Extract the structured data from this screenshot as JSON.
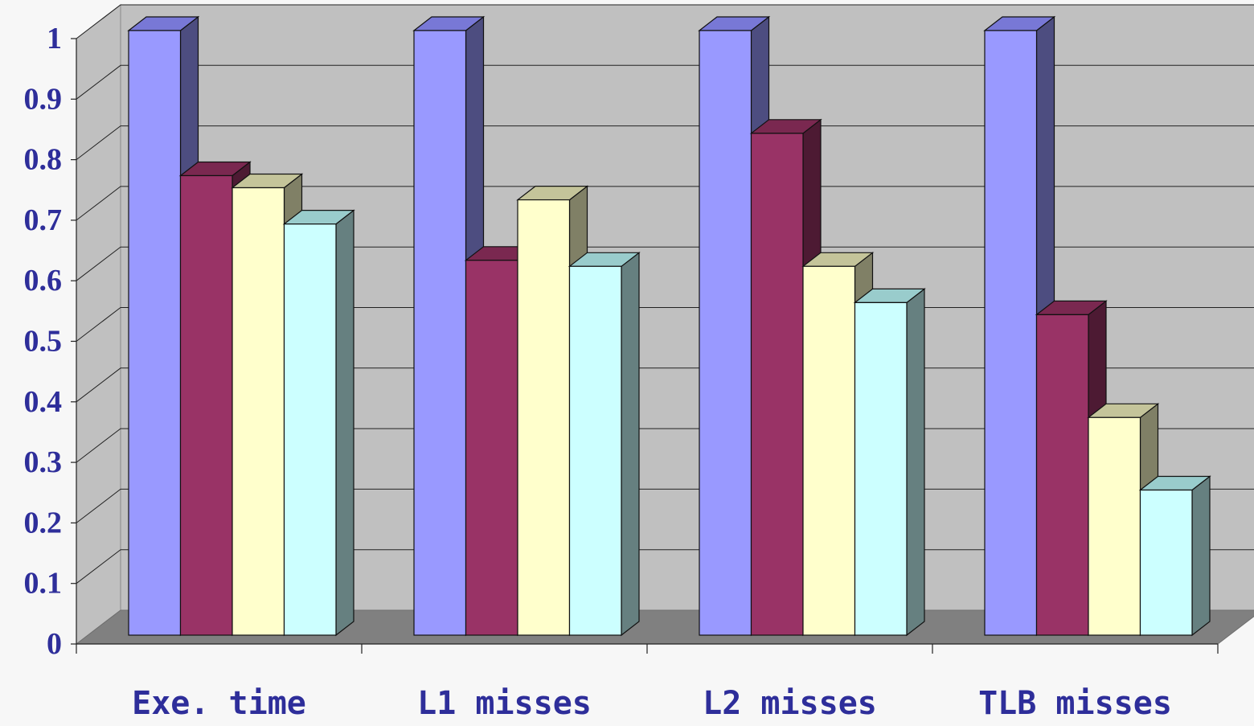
{
  "chart_data": {
    "type": "bar",
    "title": "",
    "xlabel": "",
    "ylabel": "",
    "categories": [
      "Exe. time",
      "L1 misses",
      "L2 misses",
      "TLB misses"
    ],
    "series": [
      {
        "values": [
          1.0,
          1.0,
          1.0,
          1.0
        ]
      },
      {
        "values": [
          0.76,
          0.62,
          0.83,
          0.53
        ]
      },
      {
        "values": [
          0.74,
          0.72,
          0.61,
          0.36
        ]
      },
      {
        "values": [
          0.68,
          0.61,
          0.55,
          0.24
        ]
      }
    ],
    "ylim": [
      0,
      1
    ],
    "yticks": [
      "0",
      "0.1",
      "0.2",
      "0.3",
      "0.4",
      "0.5",
      "0.6",
      "0.7",
      "0.8",
      "0.9",
      "1"
    ],
    "grid": true,
    "legend": "none",
    "three_d": true
  },
  "colors": {
    "series": [
      {
        "front": "#9999ff",
        "top": "#7878d6",
        "side": "#4d4d80"
      },
      {
        "front": "#993366",
        "top": "#7a2850",
        "side": "#4d1a33"
      },
      {
        "front": "#ffffcc",
        "top": "#c4c49a",
        "side": "#808066"
      },
      {
        "front": "#ccffff",
        "top": "#99cccc",
        "side": "#668080"
      }
    ],
    "wall": "#c0c0c0",
    "floor": "#808080",
    "tick_text": "#2e2e9a"
  }
}
